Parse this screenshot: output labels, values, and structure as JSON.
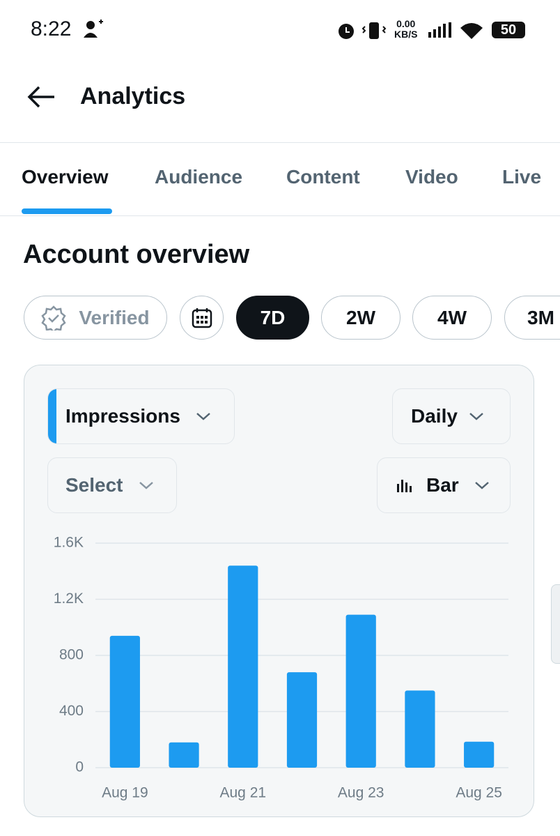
{
  "status_bar": {
    "time": "8:22",
    "net_speed": "0.00",
    "net_unit": "KB/S",
    "battery": "50"
  },
  "header": {
    "title": "Analytics"
  },
  "tabs": [
    "Overview",
    "Audience",
    "Content",
    "Video",
    "Live"
  ],
  "section_title": "Account overview",
  "filters": [
    "Verified",
    "7D",
    "2W",
    "4W",
    "3M"
  ],
  "controls": {
    "metric": "Impressions",
    "interval": "Daily",
    "compare": "Select",
    "chart_style": "Bar"
  },
  "chart_data": {
    "type": "bar",
    "categories": [
      "Aug 19",
      null,
      "Aug 21",
      null,
      "Aug 23",
      null,
      "Aug 25"
    ],
    "values": [
      940,
      180,
      1440,
      680,
      1090,
      550,
      185
    ],
    "color": "#1d9bf0",
    "ylim": [
      0,
      1600
    ],
    "yticks": [
      0,
      400,
      800,
      {
        "value": 1200,
        "label": "1.2K"
      },
      {
        "value": 1600,
        "label": "1.6K"
      }
    ],
    "grid": true
  }
}
